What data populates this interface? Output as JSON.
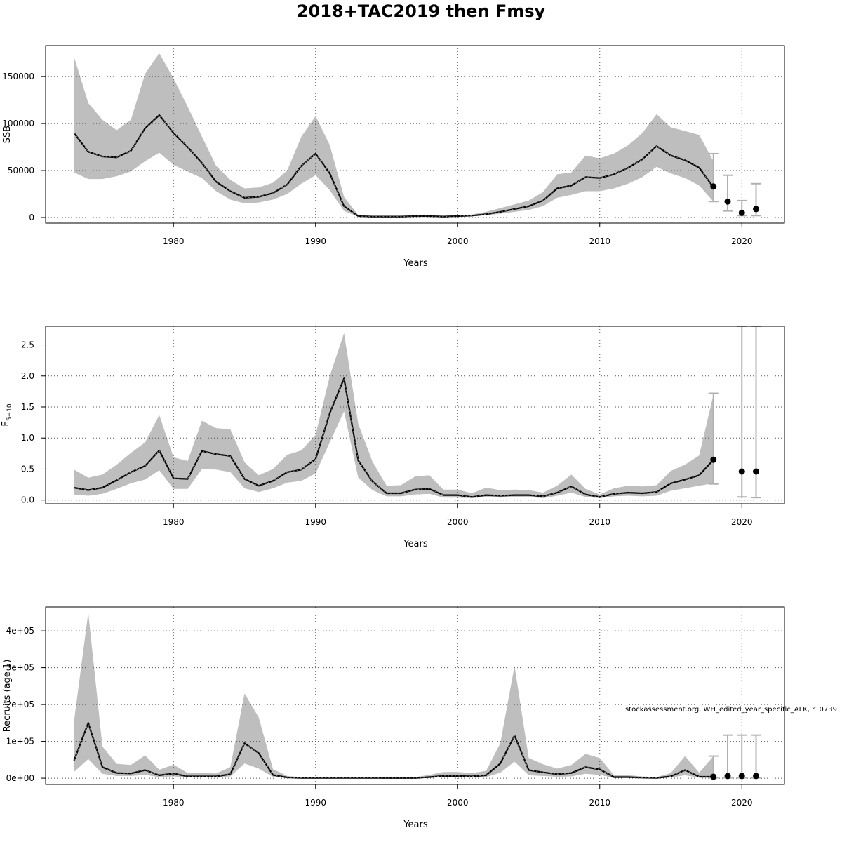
{
  "figure": {
    "title": "2018+TAC2019 then Fmsy",
    "credit": "stockassessment.org, WH_edited_year_specific_ALK, r10739"
  },
  "chart_data": [
    {
      "type": "area",
      "id": "ssb",
      "xlabel": "Years",
      "ylabel": "SSB",
      "xlim": [
        1971,
        2023
      ],
      "ylim": [
        -6000,
        183000
      ],
      "xticks": [
        1980,
        1990,
        2000,
        2010,
        2020
      ],
      "yticks": [
        0,
        50000,
        100000,
        150000
      ],
      "ytick_labels": [
        "0",
        "50000",
        "100000",
        "150000"
      ],
      "grid": true,
      "x": [
        1973,
        1974,
        1975,
        1976,
        1977,
        1978,
        1979,
        1980,
        1981,
        1982,
        1983,
        1984,
        1985,
        1986,
        1987,
        1988,
        1989,
        1990,
        1991,
        1992,
        1993,
        1994,
        1995,
        1996,
        1997,
        1998,
        1999,
        2000,
        2001,
        2002,
        2003,
        2004,
        2005,
        2006,
        2007,
        2008,
        2009,
        2010,
        2011,
        2012,
        2013,
        2014,
        2015,
        2016,
        2017,
        2018
      ],
      "estimate": [
        90000,
        70000,
        65000,
        64000,
        71000,
        95000,
        109000,
        90000,
        75000,
        58000,
        38000,
        28000,
        21000,
        22000,
        26000,
        35000,
        55000,
        68000,
        47000,
        12000,
        1500,
        1000,
        1000,
        1000,
        1500,
        1500,
        1000,
        1500,
        2000,
        3500,
        6000,
        9000,
        12000,
        18000,
        31000,
        34000,
        43000,
        42000,
        46000,
        53000,
        62000,
        76000,
        66000,
        61000,
        53000,
        32000
      ],
      "lower": [
        48000,
        41000,
        41000,
        44000,
        49000,
        60000,
        69000,
        56000,
        49000,
        42000,
        28000,
        19000,
        15000,
        16000,
        19000,
        25000,
        36000,
        45000,
        29000,
        7000,
        800,
        600,
        600,
        600,
        900,
        900,
        700,
        900,
        1300,
        2500,
        4000,
        6000,
        8000,
        12000,
        21000,
        24000,
        28000,
        28000,
        31000,
        36000,
        43000,
        54000,
        47000,
        42000,
        34000,
        17000
      ],
      "upper": [
        171000,
        122000,
        104000,
        93000,
        104000,
        153000,
        175000,
        148000,
        118000,
        86000,
        55000,
        40000,
        31000,
        32000,
        37000,
        50000,
        86000,
        108000,
        77000,
        22000,
        2500,
        1700,
        1700,
        1700,
        2300,
        2300,
        1700,
        2300,
        3200,
        6000,
        10000,
        14000,
        18000,
        27000,
        46000,
        48000,
        66000,
        63000,
        68000,
        77000,
        90000,
        110000,
        96000,
        92000,
        88000,
        60000
      ],
      "projection": {
        "x": [
          2018,
          2019,
          2020,
          2021
        ],
        "median": [
          33000,
          17000,
          5000,
          9000
        ],
        "lower": [
          17000,
          7000,
          2000,
          2000
        ],
        "upper": [
          68000,
          45000,
          18000,
          36000
        ]
      }
    },
    {
      "type": "area",
      "id": "f",
      "xlabel": "Years",
      "ylabel_main": "F",
      "ylabel_sub": "5−10",
      "xlim": [
        1971,
        2023
      ],
      "ylim": [
        -0.06,
        2.8
      ],
      "xticks": [
        1980,
        1990,
        2000,
        2010,
        2020
      ],
      "yticks": [
        0,
        0.5,
        1,
        1.5,
        2,
        2.5
      ],
      "ytick_labels": [
        "0.0",
        "0.5",
        "1.0",
        "1.5",
        "2.0",
        "2.5"
      ],
      "grid": true,
      "x": [
        1973,
        1974,
        1975,
        1976,
        1977,
        1978,
        1979,
        1980,
        1981,
        1982,
        1983,
        1984,
        1985,
        1986,
        1987,
        1988,
        1989,
        1990,
        1991,
        1992,
        1993,
        1994,
        1995,
        1996,
        1997,
        1998,
        1999,
        2000,
        2001,
        2002,
        2003,
        2004,
        2005,
        2006,
        2007,
        2008,
        2009,
        2010,
        2011,
        2012,
        2013,
        2014,
        2015,
        2016,
        2017,
        2018
      ],
      "estimate": [
        0.2,
        0.16,
        0.2,
        0.32,
        0.45,
        0.55,
        0.8,
        0.35,
        0.34,
        0.79,
        0.74,
        0.71,
        0.34,
        0.23,
        0.31,
        0.45,
        0.49,
        0.66,
        1.4,
        1.96,
        0.64,
        0.3,
        0.11,
        0.11,
        0.17,
        0.18,
        0.08,
        0.08,
        0.05,
        0.08,
        0.07,
        0.08,
        0.08,
        0.06,
        0.12,
        0.22,
        0.09,
        0.05,
        0.1,
        0.12,
        0.11,
        0.13,
        0.27,
        0.33,
        0.4,
        0.65
      ],
      "lower": [
        0.09,
        0.07,
        0.1,
        0.18,
        0.27,
        0.33,
        0.48,
        0.18,
        0.18,
        0.5,
        0.49,
        0.45,
        0.19,
        0.13,
        0.19,
        0.28,
        0.31,
        0.43,
        0.93,
        1.43,
        0.36,
        0.16,
        0.06,
        0.06,
        0.09,
        0.1,
        0.04,
        0.04,
        0.03,
        0.05,
        0.04,
        0.05,
        0.05,
        0.03,
        0.07,
        0.12,
        0.05,
        0.03,
        0.06,
        0.07,
        0.06,
        0.07,
        0.15,
        0.19,
        0.23,
        0.27
      ],
      "upper": [
        0.49,
        0.36,
        0.41,
        0.57,
        0.76,
        0.93,
        1.37,
        0.69,
        0.63,
        1.28,
        1.16,
        1.14,
        0.61,
        0.4,
        0.5,
        0.73,
        0.8,
        1.05,
        2.0,
        2.69,
        1.23,
        0.62,
        0.23,
        0.24,
        0.38,
        0.4,
        0.17,
        0.17,
        0.11,
        0.2,
        0.16,
        0.17,
        0.16,
        0.12,
        0.23,
        0.41,
        0.18,
        0.09,
        0.19,
        0.23,
        0.22,
        0.24,
        0.47,
        0.57,
        0.72,
        1.7
      ],
      "projection": {
        "x": [
          2018,
          2019,
          2020,
          2021
        ],
        "median": [
          0.65,
          null,
          0.46,
          0.46
        ],
        "lower": [
          0.26,
          null,
          0.05,
          0.04
        ],
        "upper": [
          1.72,
          null,
          2.8,
          2.8
        ]
      }
    },
    {
      "type": "area",
      "id": "recruits",
      "xlabel": "Years",
      "ylabel": "Recruits (age 1)",
      "xlim": [
        1971,
        2023
      ],
      "ylim": [
        -17000,
        465000
      ],
      "xticks": [
        1980,
        1990,
        2000,
        2010,
        2020
      ],
      "yticks": [
        0,
        100000,
        200000,
        300000,
        400000
      ],
      "ytick_labels": [
        "0e+00",
        "1e+05",
        "2e+05",
        "3e+05",
        "4e+05"
      ],
      "grid": true,
      "x": [
        1973,
        1974,
        1975,
        1976,
        1977,
        1978,
        1979,
        1980,
        1981,
        1982,
        1983,
        1984,
        1985,
        1986,
        1987,
        1988,
        1989,
        1990,
        1991,
        1992,
        1993,
        1994,
        1995,
        1996,
        1997,
        1998,
        1999,
        2000,
        2001,
        2002,
        2003,
        2004,
        2005,
        2006,
        2007,
        2008,
        2009,
        2010,
        2011,
        2012,
        2013,
        2014,
        2015,
        2016,
        2017,
        2018
      ],
      "estimate": [
        48000,
        150000,
        30000,
        14000,
        13000,
        22000,
        8000,
        13000,
        5000,
        5000,
        5000,
        11000,
        95000,
        68000,
        9000,
        2000,
        1000,
        1000,
        1000,
        1000,
        1000,
        1000,
        500,
        500,
        500,
        3000,
        6000,
        6000,
        5000,
        8000,
        40000,
        116000,
        22000,
        16000,
        11000,
        14000,
        30000,
        24000,
        3000,
        3000,
        1500,
        1000,
        5000,
        22000,
        4000,
        4000
      ],
      "lower": [
        17000,
        52000,
        12000,
        6000,
        6000,
        9000,
        3000,
        5000,
        2000,
        2000,
        2000,
        5000,
        40000,
        26000,
        4000,
        700,
        300,
        300,
        300,
        300,
        300,
        300,
        200,
        200,
        200,
        1000,
        2500,
        2500,
        2000,
        3000,
        15000,
        45000,
        8000,
        6000,
        4000,
        5000,
        12000,
        9000,
        1000,
        1000,
        500,
        300,
        2000,
        8000,
        1500,
        1500
      ],
      "upper": [
        155000,
        450000,
        86000,
        39000,
        36000,
        62000,
        23000,
        37000,
        14000,
        14000,
        13000,
        30000,
        230000,
        165000,
        25000,
        6000,
        3000,
        3000,
        3000,
        3000,
        3000,
        3000,
        2000,
        2000,
        3000,
        9000,
        17000,
        17000,
        14000,
        20000,
        95000,
        305000,
        55000,
        38000,
        26000,
        36000,
        66000,
        55000,
        8000,
        8000,
        5000,
        3000,
        14000,
        60000,
        15000,
        60000
      ],
      "projection": {
        "x": [
          2018,
          2019,
          2020,
          2021
        ],
        "median": [
          4000,
          6000,
          6000,
          6000
        ],
        "lower": [
          1000,
          1000,
          1000,
          1000
        ],
        "upper": [
          60000,
          117000,
          117000,
          117000
        ]
      }
    }
  ]
}
